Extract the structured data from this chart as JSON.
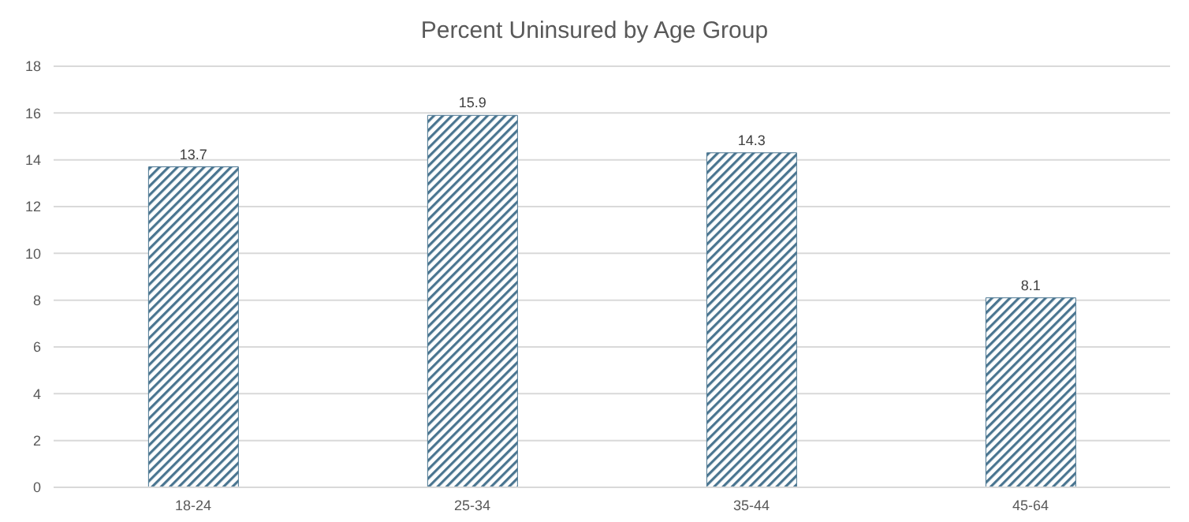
{
  "chart_data": {
    "type": "bar",
    "title": "Percent Uninsured by Age Group",
    "categories": [
      "18-24",
      "25-34",
      "35-44",
      "45-64"
    ],
    "values": [
      13.7,
      15.9,
      14.3,
      8.1
    ],
    "color": "#4a7590",
    "ylim": [
      0,
      18
    ],
    "yticks": [
      0,
      2,
      4,
      6,
      8,
      10,
      12,
      14,
      16,
      18
    ],
    "grid": "y",
    "data_labels": true
  }
}
